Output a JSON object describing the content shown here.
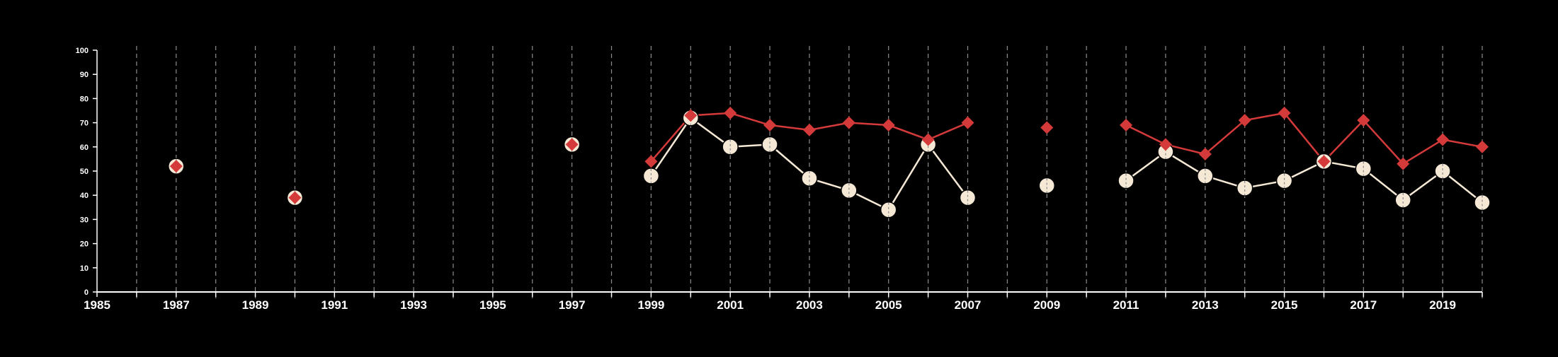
{
  "chart_data": {
    "type": "line",
    "title": "",
    "xlabel": "",
    "ylabel": "",
    "xlim": [
      1985,
      2020
    ],
    "ylim": [
      0,
      100
    ],
    "y_ticks": [
      "0",
      "10",
      "20",
      "30",
      "40",
      "50",
      "60",
      "70",
      "80",
      "90",
      "100"
    ],
    "x_ticks": [
      "1985",
      "1987",
      "1989",
      "1991",
      "1993",
      "1995",
      "1997",
      "1999",
      "2001",
      "2003",
      "2005",
      "2007",
      "2009",
      "2011",
      "2013",
      "2015",
      "2017",
      "2019"
    ],
    "grid": "vertical dashed lines at every year",
    "legend": "none",
    "colors": {
      "background": "#000000",
      "axis": "#ffffff",
      "grid": "#8c8c8c",
      "series_red": "#d43a3a",
      "series_cream": "#f5e9d6"
    },
    "series": [
      {
        "marker": "circle",
        "color": "#f5e9d6",
        "points": [
          {
            "x": 1987,
            "y": 52
          },
          {
            "x": 1990,
            "y": 39
          },
          {
            "x": 1997,
            "y": 61
          },
          {
            "x": 1999,
            "y": 48
          },
          {
            "x": 2000,
            "y": 72
          },
          {
            "x": 2001,
            "y": 60
          },
          {
            "x": 2002,
            "y": 61
          },
          {
            "x": 2003,
            "y": 47
          },
          {
            "x": 2004,
            "y": 42
          },
          {
            "x": 2005,
            "y": 34
          },
          {
            "x": 2006,
            "y": 61
          },
          {
            "x": 2007,
            "y": 39
          },
          {
            "x": 2009,
            "y": 44
          },
          {
            "x": 2011,
            "y": 46
          },
          {
            "x": 2012,
            "y": 58
          },
          {
            "x": 2013,
            "y": 48
          },
          {
            "x": 2014,
            "y": 43
          },
          {
            "x": 2015,
            "y": 46
          },
          {
            "x": 2016,
            "y": 54
          },
          {
            "x": 2017,
            "y": 51
          },
          {
            "x": 2018,
            "y": 38
          },
          {
            "x": 2019,
            "y": 50
          },
          {
            "x": 2020,
            "y": 37
          }
        ]
      },
      {
        "marker": "diamond",
        "color": "#d43a3a",
        "points": [
          {
            "x": 1987,
            "y": 52
          },
          {
            "x": 1990,
            "y": 39
          },
          {
            "x": 1997,
            "y": 61
          },
          {
            "x": 1999,
            "y": 54
          },
          {
            "x": 2000,
            "y": 73
          },
          {
            "x": 2001,
            "y": 74
          },
          {
            "x": 2002,
            "y": 69
          },
          {
            "x": 2003,
            "y": 67
          },
          {
            "x": 2004,
            "y": 70
          },
          {
            "x": 2005,
            "y": 69
          },
          {
            "x": 2006,
            "y": 63
          },
          {
            "x": 2007,
            "y": 70
          },
          {
            "x": 2009,
            "y": 68
          },
          {
            "x": 2011,
            "y": 69
          },
          {
            "x": 2012,
            "y": 61
          },
          {
            "x": 2013,
            "y": 57
          },
          {
            "x": 2014,
            "y": 71
          },
          {
            "x": 2015,
            "y": 74
          },
          {
            "x": 2016,
            "y": 54
          },
          {
            "x": 2017,
            "y": 71
          },
          {
            "x": 2018,
            "y": 53
          },
          {
            "x": 2019,
            "y": 63
          },
          {
            "x": 2020,
            "y": 60
          }
        ]
      }
    ]
  }
}
